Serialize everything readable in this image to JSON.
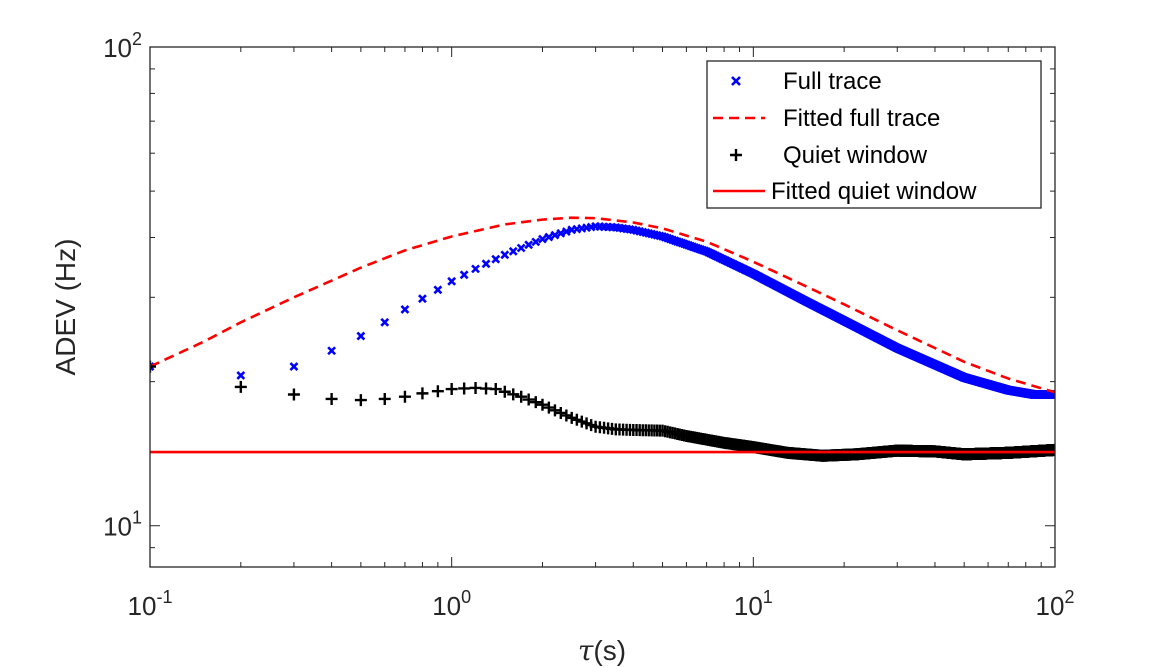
{
  "chart_data": {
    "type": "scatter",
    "xscale": "log",
    "yscale": "log",
    "xlim": [
      0.1,
      100
    ],
    "ylim": [
      8.2,
      100
    ],
    "xlabel": "τ(s)",
    "ylabel": "ADEV (Hz)",
    "x_ticks": [
      {
        "value": 0.1,
        "base": "10",
        "exp": "-1"
      },
      {
        "value": 1,
        "base": "10",
        "exp": "0"
      },
      {
        "value": 10,
        "base": "10",
        "exp": "1"
      },
      {
        "value": 100,
        "base": "10",
        "exp": "2"
      }
    ],
    "y_ticks": [
      {
        "value": 10,
        "base": "10",
        "exp": "1"
      },
      {
        "value": 100,
        "base": "10",
        "exp": "2"
      }
    ],
    "legend_position": "top-right",
    "series": [
      {
        "name": "Full trace",
        "style": "x-marker",
        "color": "#0000ff",
        "key_points": [
          [
            0.1,
            21.5
          ],
          [
            0.2,
            20.6
          ],
          [
            0.3,
            21.5
          ],
          [
            0.4,
            23.2
          ],
          [
            0.5,
            24.9
          ],
          [
            0.6,
            26.6
          ],
          [
            0.7,
            28.3
          ],
          [
            0.8,
            29.8
          ],
          [
            0.9,
            31.1
          ],
          [
            1.0,
            32.4
          ],
          [
            1.2,
            34.4
          ],
          [
            1.5,
            36.8
          ],
          [
            2.0,
            39.7
          ],
          [
            2.5,
            41.5
          ],
          [
            3.0,
            42.2
          ],
          [
            3.5,
            42.0
          ],
          [
            4.0,
            41.5
          ],
          [
            5.0,
            40.2
          ],
          [
            7.0,
            37.4
          ],
          [
            10.0,
            33.6
          ],
          [
            15.0,
            29.4
          ],
          [
            20.0,
            26.8
          ],
          [
            30.0,
            23.5
          ],
          [
            50.0,
            20.4
          ],
          [
            70.0,
            19.2
          ],
          [
            85.0,
            18.8
          ],
          [
            100.0,
            18.8
          ]
        ]
      },
      {
        "name": "Fitted full trace",
        "style": "dashed-line",
        "color": "#ff0000",
        "key_points": [
          [
            0.1,
            21.5
          ],
          [
            0.15,
            24.2
          ],
          [
            0.2,
            26.6
          ],
          [
            0.3,
            30.0
          ],
          [
            0.5,
            34.6
          ],
          [
            0.7,
            37.6
          ],
          [
            1.0,
            40.2
          ],
          [
            1.5,
            42.6
          ],
          [
            2.0,
            43.6
          ],
          [
            2.5,
            44.0
          ],
          [
            3.0,
            43.9
          ],
          [
            4.0,
            43.0
          ],
          [
            5.0,
            41.8
          ],
          [
            7.0,
            39.2
          ],
          [
            10.0,
            35.6
          ],
          [
            15.0,
            31.6
          ],
          [
            20.0,
            29.0
          ],
          [
            30.0,
            25.6
          ],
          [
            50.0,
            22.0
          ],
          [
            70.0,
            20.3
          ],
          [
            100.0,
            19.0
          ]
        ]
      },
      {
        "name": "Quiet window",
        "style": "plus-marker",
        "color": "#000000",
        "key_points": [
          [
            0.1,
            21.5
          ],
          [
            0.2,
            19.5
          ],
          [
            0.3,
            18.8
          ],
          [
            0.4,
            18.4
          ],
          [
            0.5,
            18.3
          ],
          [
            0.6,
            18.4
          ],
          [
            0.7,
            18.6
          ],
          [
            0.8,
            18.9
          ],
          [
            0.9,
            19.1
          ],
          [
            1.0,
            19.3
          ],
          [
            1.2,
            19.4
          ],
          [
            1.4,
            19.3
          ],
          [
            1.7,
            18.6
          ],
          [
            2.0,
            17.9
          ],
          [
            2.5,
            16.8
          ],
          [
            3.0,
            16.1
          ],
          [
            3.5,
            15.9
          ],
          [
            4.0,
            15.85
          ],
          [
            5.0,
            15.8
          ],
          [
            6.0,
            15.4
          ],
          [
            8.0,
            14.9
          ],
          [
            10.0,
            14.6
          ],
          [
            13.0,
            14.2
          ],
          [
            17.0,
            14.0
          ],
          [
            22.0,
            14.1
          ],
          [
            30.0,
            14.35
          ],
          [
            40.0,
            14.3
          ],
          [
            50.0,
            14.1
          ],
          [
            70.0,
            14.2
          ],
          [
            100.0,
            14.4
          ]
        ]
      },
      {
        "name": "Fitted quiet window",
        "style": "solid-line",
        "color": "#ff0000",
        "key_points": [
          [
            0.1,
            14.25
          ],
          [
            100.0,
            14.25
          ]
        ]
      }
    ]
  }
}
